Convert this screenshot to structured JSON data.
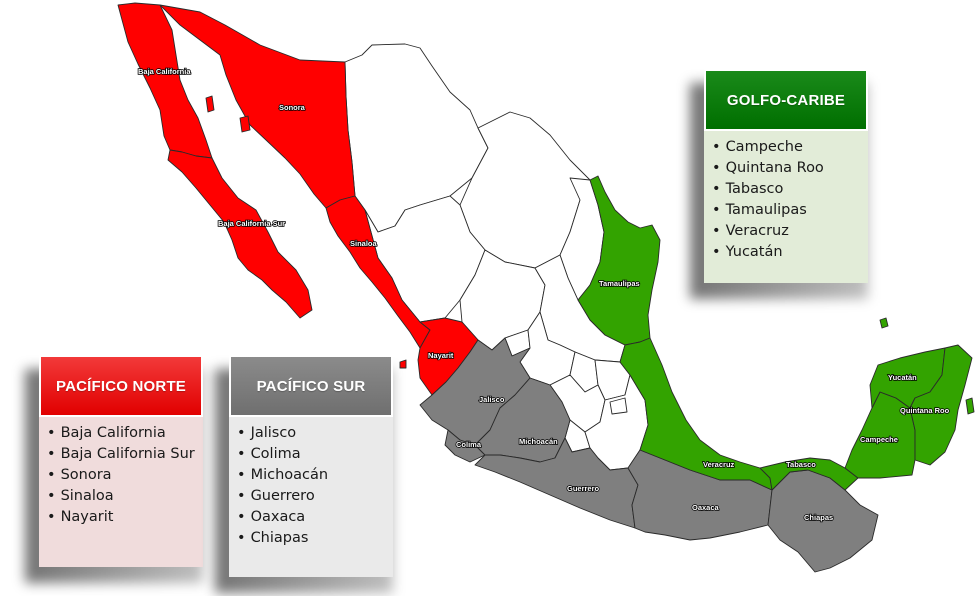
{
  "colors": {
    "pacifico_norte": "#ff0000",
    "pacifico_sur": "#7f7f7f",
    "golfo_caribe": "#33a300",
    "other_states": "#ffffff",
    "borders": "#2a2a2a"
  },
  "map_labels": {
    "baja_california": "Baja California",
    "sonora": "Sonora",
    "baja_california_sur": "Baja California Sur",
    "sinaloa": "Sinaloa",
    "nayarit": "Nayarit",
    "jalisco": "Jalisco",
    "colima": "Colima",
    "michoacan": "Michoacán",
    "guerrero": "Guerrero",
    "oaxaca": "Oaxaca",
    "chiapas": "Chiapas",
    "tamaulipas": "Tamaulipas",
    "veracruz": "Veracruz",
    "tabasco": "Tabasco",
    "campeche": "Campeche",
    "yucatan": "Yucatán",
    "quintana_roo": "Quintana Roo"
  },
  "regions": {
    "pacifico_norte": {
      "title": "PACÍFICO  NORTE",
      "states": [
        "Baja California",
        "Baja California Sur",
        "Sonora",
        "Sinaloa",
        "Nayarit"
      ]
    },
    "pacifico_sur": {
      "title": "PACÍFICO SUR",
      "states": [
        "Jalisco",
        "Colima",
        "Michoacán",
        "Guerrero",
        "Oaxaca",
        "Chiapas"
      ]
    },
    "golfo_caribe": {
      "title": "GOLFO-CARIBE",
      "states": [
        "Campeche",
        "Quintana Roo",
        "Tabasco",
        "Tamaulipas",
        "Veracruz",
        "Yucatán"
      ]
    }
  }
}
